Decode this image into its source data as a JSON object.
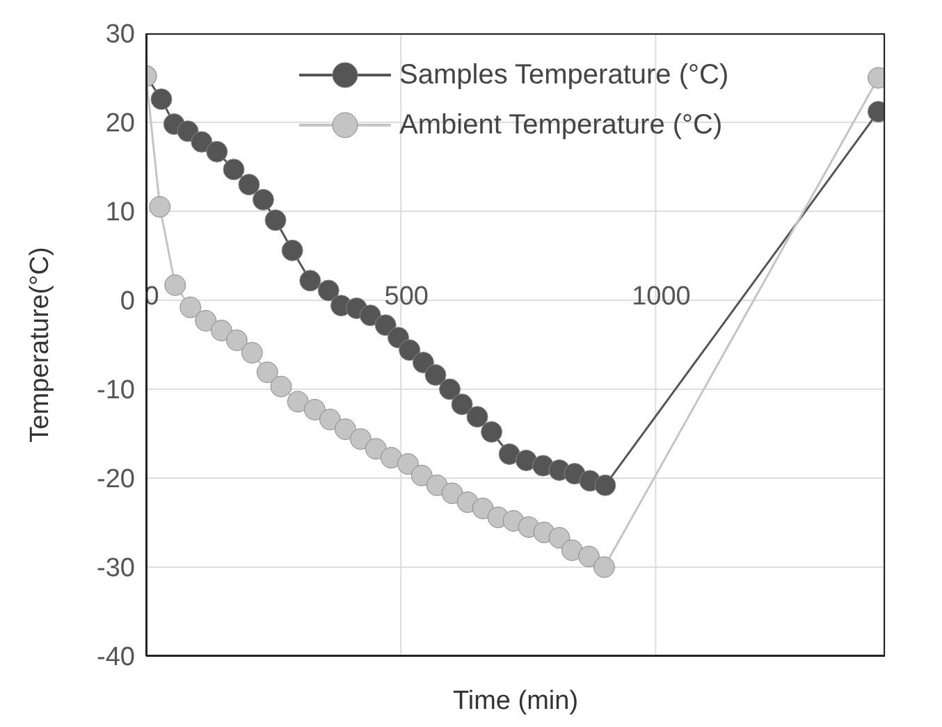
{
  "chart_data": {
    "type": "line",
    "xlabel": "Time (min)",
    "ylabel": "Temperature(°C)",
    "xlim": [
      0,
      1450
    ],
    "xticks": [
      0,
      500,
      1000
    ],
    "ylim": [
      -40,
      30
    ],
    "yticks": [
      -40,
      -30,
      -20,
      -10,
      0,
      10,
      20,
      30
    ],
    "grid": true,
    "legend": "top",
    "marker": "circle",
    "line_style": "solid",
    "series": [
      {
        "name": "Samples Temperature (°C)",
        "color": "#555555",
        "x": [
          0,
          30,
          55,
          82,
          109,
          139,
          172,
          202,
          230,
          254,
          287,
          322,
          358,
          383,
          413,
          440,
          470,
          495,
          517,
          544,
          568,
          596,
          620,
          650,
          678,
          713,
          746,
          779,
          811,
          841,
          871,
          901,
          1437
        ],
        "values": [
          25.2,
          22.6,
          19.8,
          19,
          17.8,
          16.7,
          14.7,
          13,
          11.3,
          9,
          5.6,
          2.2,
          1.1,
          -0.6,
          -0.9,
          -1.7,
          -2.8,
          -4.2,
          -5.6,
          -7,
          -8.4,
          -10,
          -11.7,
          -13.1,
          -14.8,
          -17.3,
          -18,
          -18.6,
          -19.1,
          -19.5,
          -20.3,
          -20.8,
          21.2
        ]
      },
      {
        "name": "Ambient Temperature (°C)",
        "color": "#c4c4c4",
        "x": [
          0,
          27,
          57,
          87,
          117,
          148,
          178,
          208,
          238,
          265,
          298,
          331,
          361,
          391,
          421,
          451,
          481,
          514,
          541,
          571,
          601,
          631,
          661,
          691,
          721,
          751,
          781,
          811,
          836,
          869,
          899,
          1437
        ],
        "values": [
          25.2,
          10.5,
          1.7,
          -0.8,
          -2.3,
          -3.4,
          -4.5,
          -5.9,
          -8.1,
          -9.7,
          -11.4,
          -12.3,
          -13.4,
          -14.5,
          -15.6,
          -16.7,
          -17.7,
          -18.4,
          -19.7,
          -20.8,
          -21.7,
          -22.7,
          -23.4,
          -24.4,
          -24.8,
          -25.5,
          -26.1,
          -26.7,
          -28.1,
          -28.8,
          -30,
          25
        ]
      }
    ]
  }
}
